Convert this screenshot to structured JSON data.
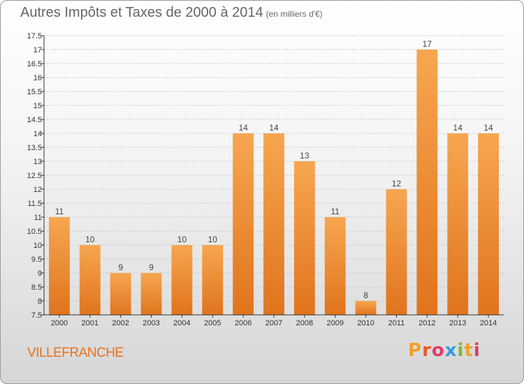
{
  "header": {
    "title": "Autres Impôts et Taxes de 2000 à 2014",
    "subtitle": "(en milliers d'€)"
  },
  "footer": {
    "city": "VILLEFRANCHE"
  },
  "logo": {
    "letters": [
      "P",
      "r",
      "o",
      "x",
      "i",
      "t",
      "i"
    ],
    "colors": [
      "#f0a02a",
      "#e55a2b",
      "#e03a6a",
      "#3a9ad9",
      "#7ab83a",
      "#f0a02a",
      "#e03a6a"
    ]
  },
  "colors": {
    "bar_light": "#f7a650",
    "bar_dark": "#e0741d",
    "axis": "#333333",
    "grid": "#c8c8c8"
  },
  "chart_data": {
    "type": "bar",
    "title": "Autres Impôts et Taxes de 2000 à 2014",
    "subtitle": "(en milliers d'€)",
    "categories": [
      "2000",
      "2001",
      "2002",
      "2003",
      "2004",
      "2005",
      "2006",
      "2007",
      "2008",
      "2009",
      "2010",
      "2011",
      "2012",
      "2013",
      "2014"
    ],
    "values": [
      11,
      10,
      9,
      9,
      10,
      10,
      14,
      14,
      13,
      11,
      8,
      12,
      17,
      14,
      14
    ],
    "ylim": [
      7.5,
      17.5
    ],
    "yticks": [
      "7.5",
      "8",
      "8.5",
      "9",
      "9.5",
      "10",
      "10.5",
      "11",
      "11.5",
      "12",
      "12.5",
      "13",
      "13.5",
      "14",
      "14.5",
      "15",
      "15.5",
      "16",
      "16.5",
      "17",
      "17.5"
    ],
    "grid": true,
    "data_labels": true
  }
}
